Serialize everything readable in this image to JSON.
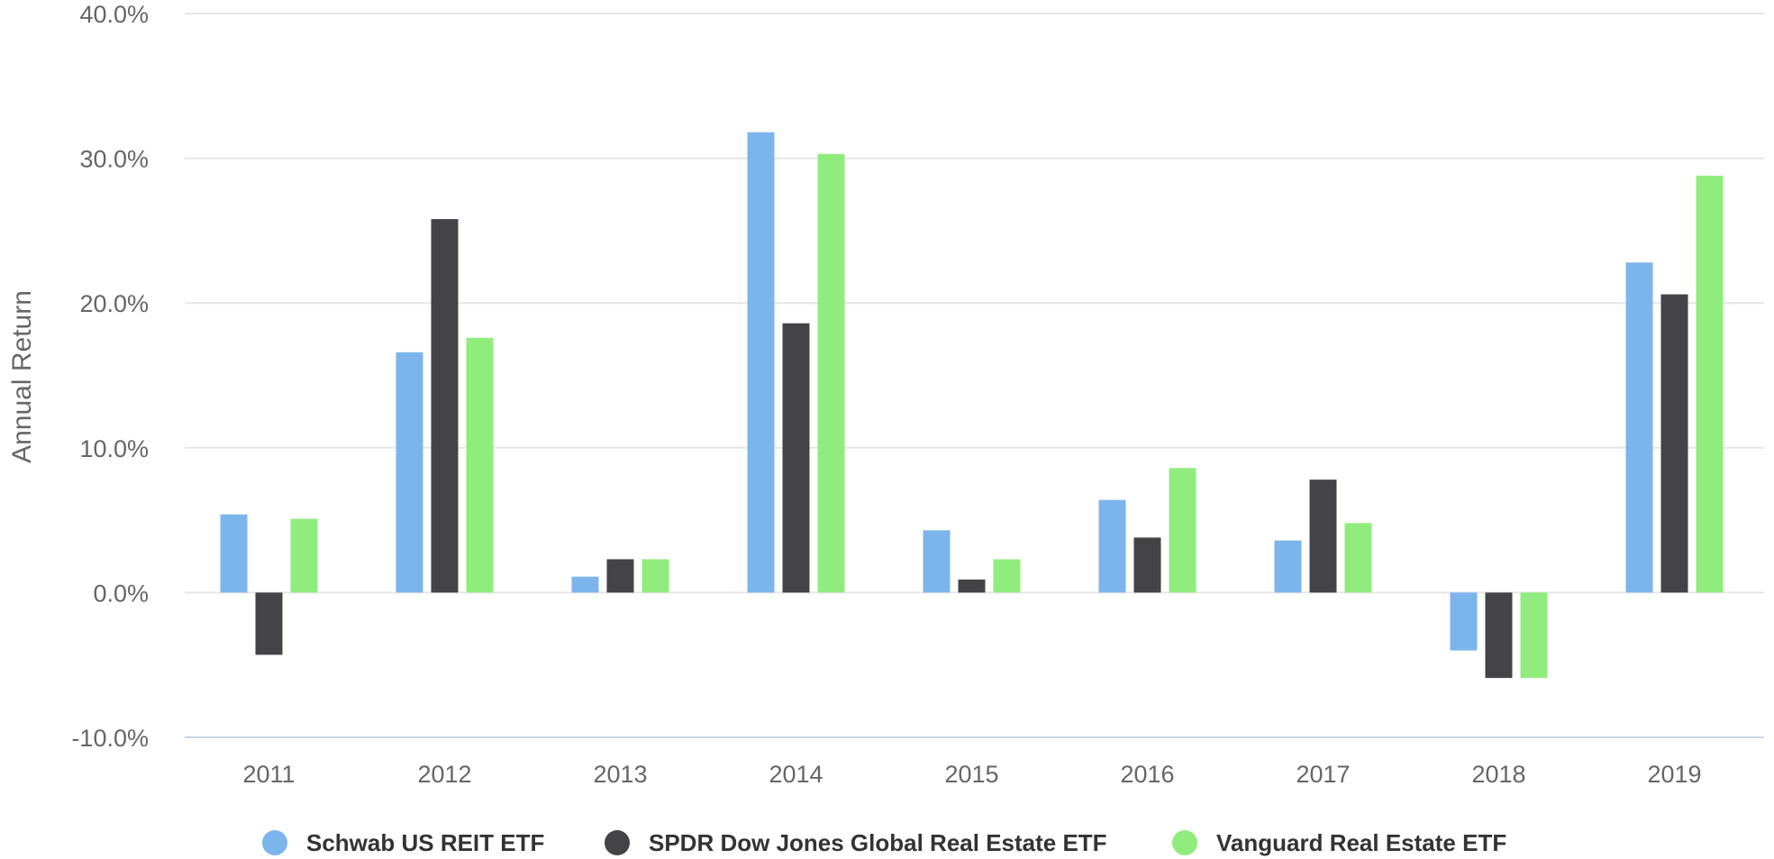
{
  "chart_data": {
    "type": "bar",
    "ylabel": "Annual Return",
    "xlabel": "",
    "ylim": [
      -10,
      40
    ],
    "yticks": [
      -10,
      0,
      10,
      20,
      30,
      40
    ],
    "ytick_labels": [
      "-10.0%",
      "0.0%",
      "10.0%",
      "20.0%",
      "30.0%",
      "40.0%"
    ],
    "grid": true,
    "legend_position": "bottom",
    "categories": [
      "2011",
      "2012",
      "2013",
      "2014",
      "2015",
      "2016",
      "2017",
      "2018",
      "2019"
    ],
    "series": [
      {
        "name": "Schwab US REIT ETF",
        "color": "#7cb5ec",
        "values": [
          5.4,
          16.6,
          1.1,
          31.8,
          4.3,
          6.4,
          3.6,
          -4.0,
          22.8
        ]
      },
      {
        "name": "SPDR Dow Jones Global Real Estate ETF",
        "color": "#434348",
        "values": [
          -4.3,
          25.8,
          2.3,
          18.6,
          0.9,
          3.8,
          7.8,
          -5.9,
          20.6
        ]
      },
      {
        "name": "Vanguard Real Estate ETF",
        "color": "#90ed7d",
        "values": [
          5.1,
          17.6,
          2.3,
          30.3,
          2.3,
          8.6,
          4.8,
          -5.9,
          28.8
        ]
      }
    ]
  }
}
